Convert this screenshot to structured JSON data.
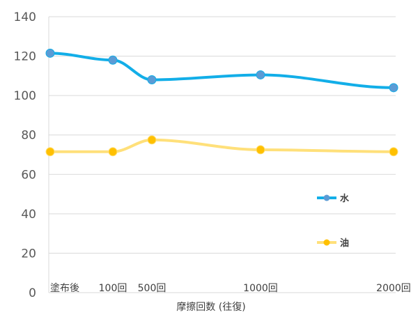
{
  "chart_data": {
    "type": "line",
    "title": "",
    "xlabel": "摩擦回数 (往復)",
    "ylabel": "",
    "ylim": [
      0,
      140
    ],
    "yticks": [
      0,
      20,
      40,
      60,
      80,
      100,
      120,
      140
    ],
    "grid": "horizontal",
    "legend_position": "right",
    "x": [
      0,
      100,
      500,
      1000,
      2000
    ],
    "x_tick_labels": [
      "塗布後",
      "100回",
      "500回",
      "1000回",
      "2000回"
    ],
    "series": [
      {
        "name": "水",
        "color": "#12aee8",
        "marker_color": "#5b9bd5",
        "values": [
          121.5,
          118,
          108,
          110.5,
          104
        ]
      },
      {
        "name": "油",
        "color": "#ffe07a",
        "marker_color": "#ffc000",
        "values": [
          71.5,
          71.5,
          77.5,
          72.5,
          71.5
        ]
      }
    ]
  }
}
